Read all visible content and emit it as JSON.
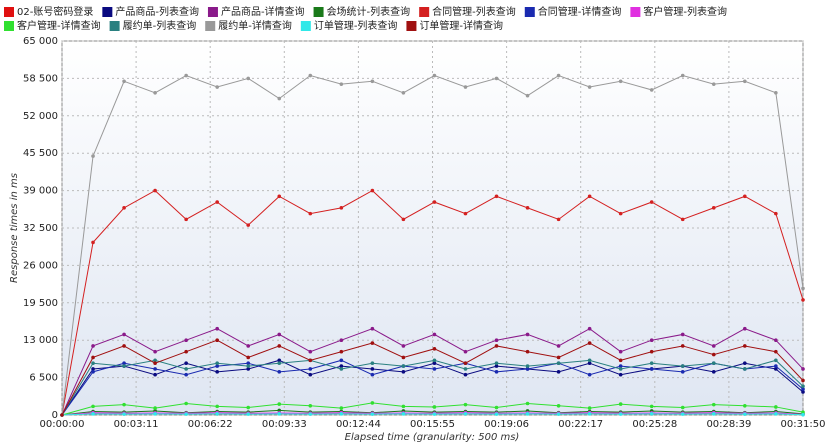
{
  "chart_data": {
    "type": "line",
    "y_label": "Response times in ms",
    "x_label": "Elapsed time (granularity: 500 ms)",
    "xlim": [
      0,
      1910
    ],
    "xticks": [
      {
        "value": 0,
        "label": "00:00:00"
      },
      {
        "value": 191,
        "label": "00:03:11"
      },
      {
        "value": 382,
        "label": "00:06:22"
      },
      {
        "value": 573,
        "label": "00:09:33"
      },
      {
        "value": 764,
        "label": "00:12:44"
      },
      {
        "value": 955,
        "label": "00:15:55"
      },
      {
        "value": 1146,
        "label": "00:19:06"
      },
      {
        "value": 1337,
        "label": "00:22:17"
      },
      {
        "value": 1528,
        "label": "00:25:28"
      },
      {
        "value": 1719,
        "label": "00:28:39"
      },
      {
        "value": 1910,
        "label": "00:31:50"
      }
    ],
    "ylim": [
      0,
      65000
    ],
    "yticks": [
      0,
      {
        "value": 6500,
        "label": "6 500"
      },
      {
        "value": 13000,
        "label": "13 000"
      },
      {
        "value": 19500,
        "label": "19 500"
      },
      {
        "value": 26000,
        "label": "26 000"
      },
      {
        "value": 32500,
        "label": "32 500"
      },
      {
        "value": 39000,
        "label": "39 000"
      },
      {
        "value": 45500,
        "label": "45 500"
      },
      {
        "value": 52000,
        "label": "52 000"
      },
      {
        "value": 58500,
        "label": "58 500"
      },
      {
        "value": 65000,
        "label": "65 000"
      }
    ],
    "grid": true,
    "x": [
      0,
      80,
      160,
      240,
      320,
      400,
      480,
      560,
      640,
      720,
      800,
      880,
      960,
      1040,
      1120,
      1200,
      1280,
      1360,
      1440,
      1520,
      1600,
      1680,
      1760,
      1840,
      1910
    ],
    "series": [
      {
        "name": "02-账号密码登录",
        "color": "#e01010",
        "values": [
          0,
          300,
          200,
          300,
          250,
          200,
          300,
          250,
          200,
          300,
          200,
          250,
          300,
          200,
          250,
          300,
          200,
          250,
          300,
          200,
          250,
          300,
          200,
          250,
          100
        ]
      },
      {
        "name": "产品商品-列表查询",
        "color": "#0a0a80",
        "values": [
          0,
          8000,
          8500,
          7000,
          9000,
          7500,
          8000,
          9500,
          7000,
          8500,
          8000,
          7500,
          9000,
          7000,
          8500,
          8000,
          7500,
          9000,
          7000,
          8000,
          8500,
          7500,
          9000,
          8000,
          4000
        ]
      },
      {
        "name": "产品商品-详情查询",
        "color": "#8a1a8a",
        "values": [
          0,
          12000,
          14000,
          11000,
          13000,
          15000,
          12000,
          14000,
          11000,
          13000,
          15000,
          12000,
          14000,
          11000,
          13000,
          14000,
          12000,
          15000,
          11000,
          13000,
          14000,
          12000,
          15000,
          13000,
          8000
        ]
      },
      {
        "name": "会场统计-列表查询",
        "color": "#1a7a1a",
        "values": [
          0,
          600,
          500,
          700,
          400,
          600,
          500,
          800,
          500,
          600,
          400,
          700,
          500,
          600,
          500,
          700,
          400,
          600,
          500,
          700,
          500,
          600,
          400,
          600,
          200
        ]
      },
      {
        "name": "合同管理-列表查询",
        "color": "#d42020",
        "values": [
          0,
          30000,
          36000,
          39000,
          34000,
          37000,
          33000,
          38000,
          35000,
          36000,
          39000,
          34000,
          37000,
          35000,
          38000,
          36000,
          34000,
          38000,
          35000,
          37000,
          34000,
          36000,
          38000,
          35000,
          20000
        ]
      },
      {
        "name": "合同管理-详情查询",
        "color": "#1a2ab0",
        "values": [
          0,
          7500,
          9000,
          8000,
          7000,
          8500,
          9000,
          7500,
          8000,
          9500,
          7000,
          8500,
          8000,
          9000,
          7500,
          8000,
          9000,
          7000,
          8500,
          8000,
          7500,
          9000,
          8000,
          8500,
          4500
        ]
      },
      {
        "name": "客户管理-列表查询",
        "color": "#e030e0",
        "values": [
          0,
          400,
          300,
          350,
          300,
          400,
          300,
          350,
          300,
          400,
          300,
          350,
          300,
          400,
          300,
          350,
          300,
          400,
          300,
          350,
          300,
          400,
          300,
          350,
          100
        ]
      },
      {
        "name": "客户管理-详情查询",
        "color": "#30e030",
        "values": [
          0,
          1500,
          1800,
          1200,
          2000,
          1500,
          1300,
          1900,
          1600,
          1200,
          2100,
          1500,
          1400,
          1800,
          1300,
          2000,
          1600,
          1200,
          1900,
          1500,
          1300,
          1800,
          1600,
          1400,
          500
        ]
      },
      {
        "name": "履约单-列表查询",
        "color": "#2a8080",
        "values": [
          0,
          9000,
          8500,
          9500,
          8000,
          9000,
          8500,
          9000,
          9500,
          8000,
          9000,
          8500,
          9500,
          8000,
          9000,
          8500,
          9000,
          9500,
          8000,
          9000,
          8500,
          9000,
          8000,
          9500,
          5000
        ]
      },
      {
        "name": "履约单-详情查询",
        "color": "#999999",
        "values": [
          0,
          45000,
          58000,
          56000,
          59000,
          57000,
          58500,
          55000,
          59000,
          57500,
          58000,
          56000,
          59000,
          57000,
          58500,
          55500,
          59000,
          57000,
          58000,
          56500,
          59000,
          57500,
          58000,
          56000,
          22000
        ]
      },
      {
        "name": "订单管理-列表查询",
        "color": "#30e8e8",
        "values": [
          0,
          200,
          150,
          200,
          150,
          200,
          150,
          200,
          150,
          200,
          150,
          200,
          150,
          200,
          150,
          200,
          150,
          200,
          150,
          200,
          150,
          200,
          150,
          200,
          50
        ]
      },
      {
        "name": "订单管理-详情查询",
        "color": "#a01010",
        "values": [
          0,
          10000,
          12000,
          9000,
          11000,
          13000,
          10000,
          12000,
          9500,
          11000,
          12500,
          10000,
          11500,
          9000,
          12000,
          11000,
          10000,
          12500,
          9500,
          11000,
          12000,
          10500,
          12000,
          11000,
          6000
        ]
      }
    ]
  }
}
